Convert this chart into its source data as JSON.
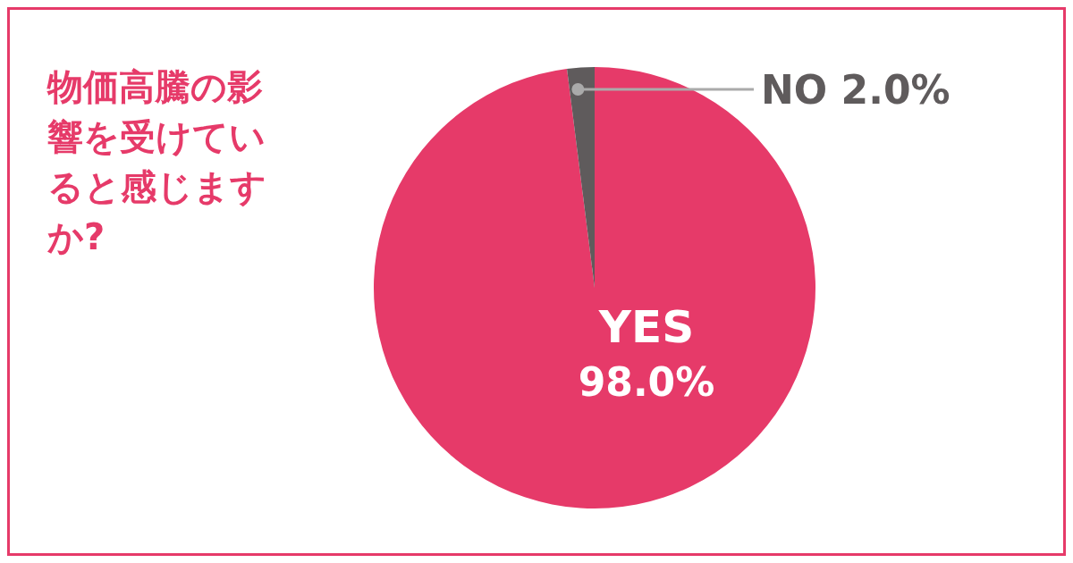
{
  "chart_data": {
    "type": "pie",
    "title": "物価高騰の影響を受けていると感じますか?",
    "categories": [
      "YES",
      "NO"
    ],
    "values": [
      98.0,
      2.0
    ],
    "colors": [
      "#e63a69",
      "#5f5b5c"
    ],
    "value_labels": [
      "98.0%",
      "2.0%"
    ],
    "legend": false
  }
}
